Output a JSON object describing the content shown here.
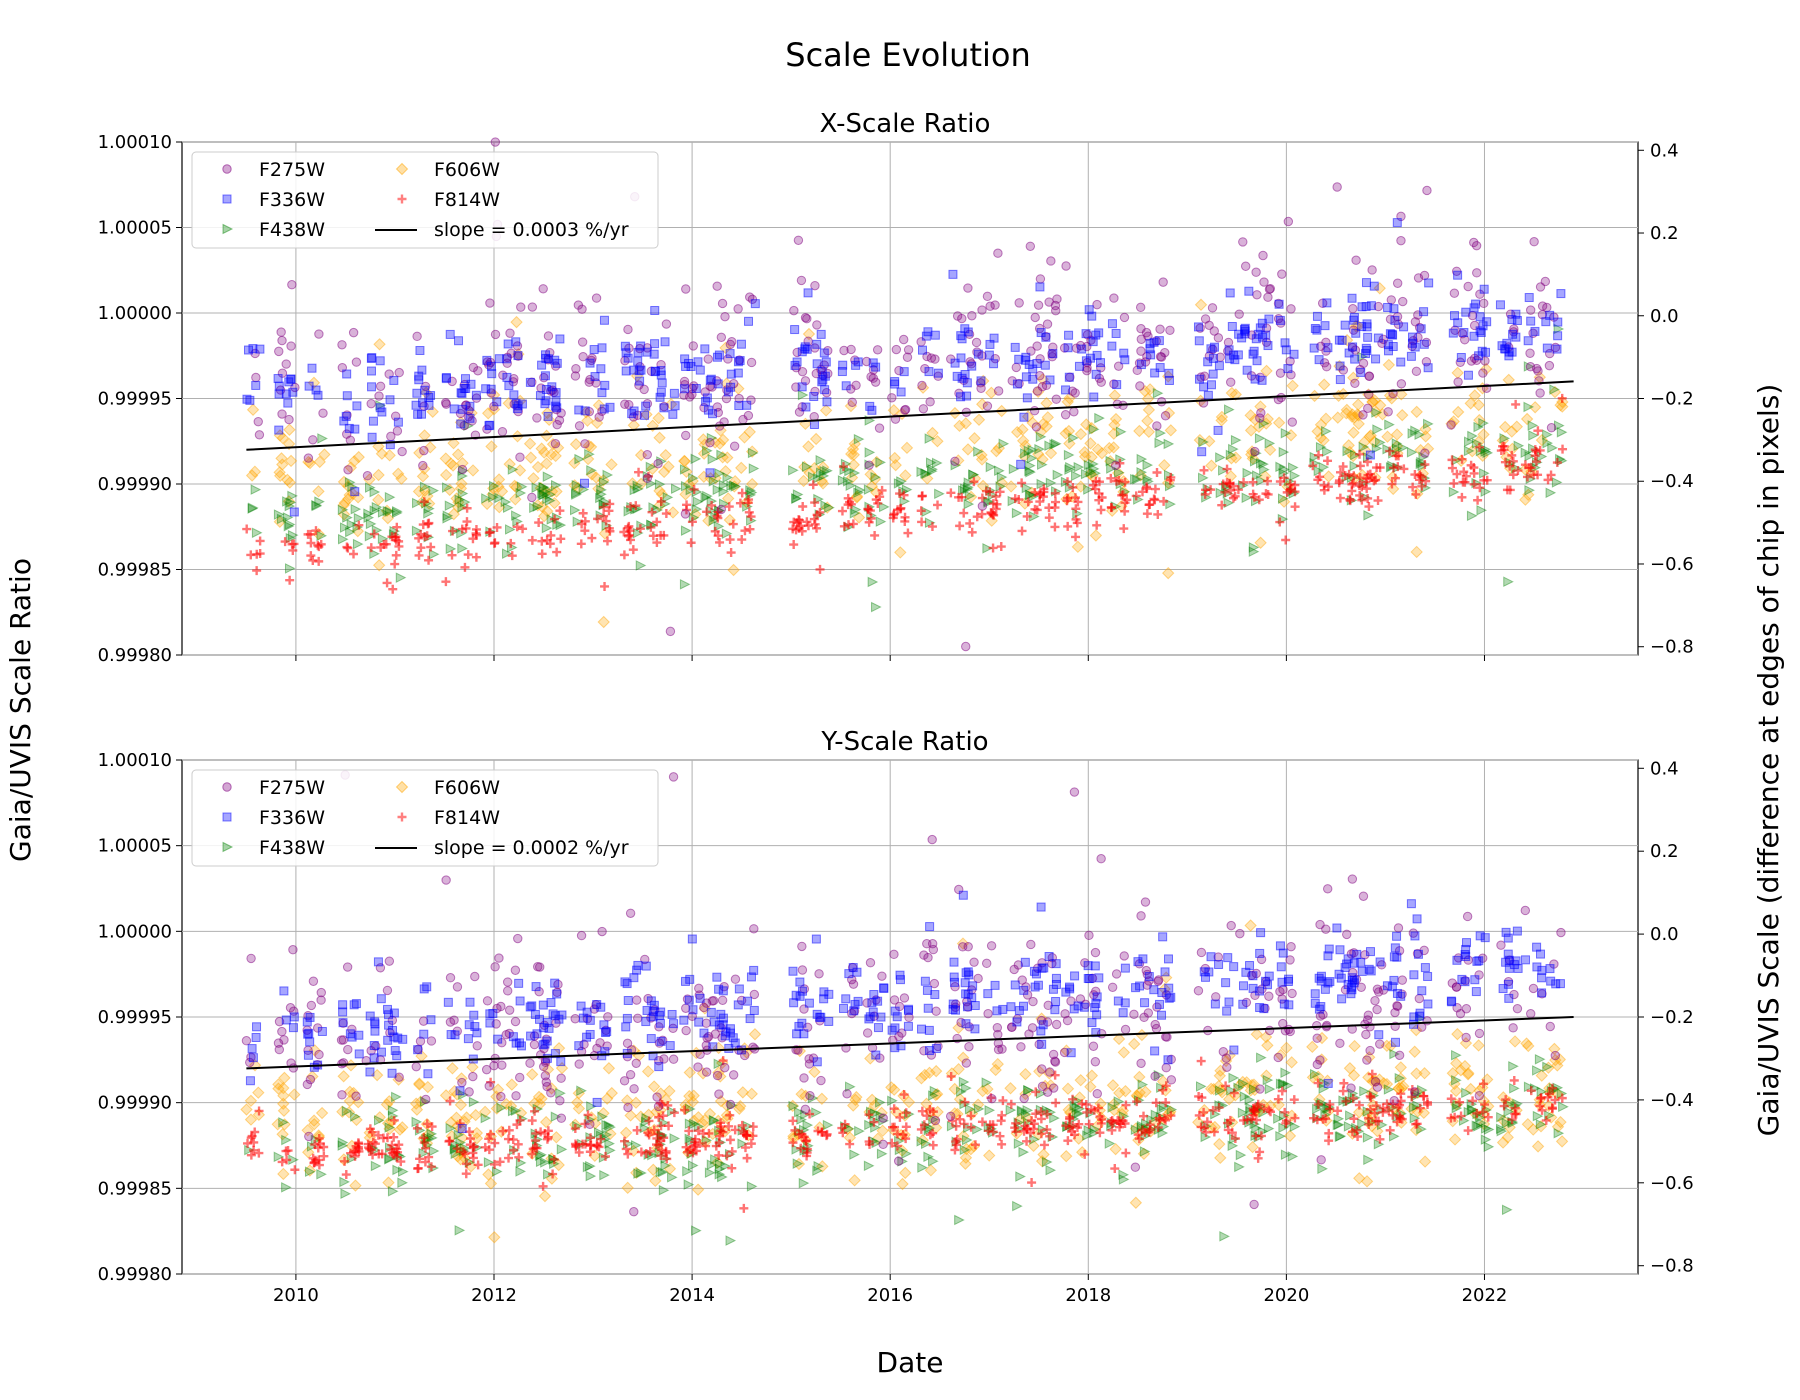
{
  "chart_data": {
    "type": "scatter",
    "title": "Scale Evolution",
    "xlabel": "Date",
    "ylabel_left": "Gaia/UVIS Scale Ratio",
    "ylabel_right": "Gaia/UVIS Scale (difference at edges of chip in pixels)",
    "xlim": [
      2008.85,
      2023.55
    ],
    "x_ticks": [
      2010,
      2012,
      2014,
      2016,
      2018,
      2020,
      2022
    ],
    "ylim": [
      0.9998,
      1.0001
    ],
    "y_ticks": [
      "1.00010",
      "1.00005",
      "1.00000",
      "0.99995",
      "0.99990",
      "0.99985",
      "0.99980"
    ],
    "y_tick_values": [
      1.0001,
      1.00005,
      1.0,
      0.99995,
      0.9999,
      0.99985,
      0.9998
    ],
    "y2lim": [
      -0.82,
      0.42
    ],
    "y2_ticks": [
      "0.4",
      "0.2",
      "0.0",
      "−0.2",
      "−0.4",
      "−0.6",
      "−0.8"
    ],
    "y2_tick_values": [
      0.4,
      0.2,
      0.0,
      -0.2,
      -0.4,
      -0.6,
      -0.8
    ],
    "grid": true,
    "legend_position": "top-left",
    "filters": [
      {
        "name": "F275W",
        "marker": "circle",
        "color": "#800080"
      },
      {
        "name": "F336W",
        "marker": "square",
        "color": "#0000ff"
      },
      {
        "name": "F438W",
        "marker": "triangle-right",
        "color": "#008000"
      },
      {
        "name": "F606W",
        "marker": "diamond",
        "color": "#ffa500"
      },
      {
        "name": "F814W",
        "marker": "plus",
        "color": "#ff0000"
      }
    ],
    "panels": [
      {
        "id": "x-scale",
        "title": "X-Scale Ratio",
        "slope_label": "slope = 0.0003 %/yr",
        "fit_line": {
          "x": [
            2009.5,
            2022.9
          ],
          "y": [
            0.99992,
            0.99996
          ]
        },
        "series": [
          {
            "name": "F275W",
            "mean_start": 0.99995,
            "mean_end": 0.99999,
            "spread": 2.5e-05
          },
          {
            "name": "F336W",
            "mean_start": 0.99995,
            "mean_end": 0.99999,
            "spread": 1.2e-05
          },
          {
            "name": "F438W",
            "mean_start": 0.99988,
            "mean_end": 0.99992,
            "spread": 1.2e-05
          },
          {
            "name": "F606W",
            "mean_start": 0.9999,
            "mean_end": 0.99994,
            "spread": 1.8e-05
          },
          {
            "name": "F814W",
            "mean_start": 0.99986,
            "mean_end": 0.99991,
            "spread": 7e-06
          }
        ]
      },
      {
        "id": "y-scale",
        "title": "Y-Scale Ratio",
        "slope_label": "slope = 0.0002 %/yr",
        "fit_line": {
          "x": [
            2009.5,
            2022.9
          ],
          "y": [
            0.99992,
            0.99995
          ]
        },
        "series": [
          {
            "name": "F275W",
            "mean_start": 0.99993,
            "mean_end": 0.99997,
            "spread": 2.5e-05
          },
          {
            "name": "F336W",
            "mean_start": 0.99994,
            "mean_end": 0.99998,
            "spread": 1.2e-05
          },
          {
            "name": "F438W",
            "mean_start": 0.99987,
            "mean_end": 0.9999,
            "spread": 1.2e-05
          },
          {
            "name": "F606W",
            "mean_start": 0.99989,
            "mean_end": 0.99991,
            "spread": 1.8e-05
          },
          {
            "name": "F814W",
            "mean_start": 0.99987,
            "mean_end": 0.9999,
            "spread": 7e-06
          }
        ]
      }
    ],
    "observation_epochs": [
      2009.55,
      2009.9,
      2010.2,
      2010.55,
      2010.8,
      2011.0,
      2011.3,
      2011.6,
      2011.75,
      2012.0,
      2012.2,
      2012.45,
      2012.6,
      2012.9,
      2013.1,
      2013.4,
      2013.6,
      2013.75,
      2014.0,
      2014.2,
      2014.35,
      2014.55,
      2015.1,
      2015.3,
      2015.6,
      2015.85,
      2016.1,
      2016.4,
      2016.7,
      2016.85,
      2017.05,
      2017.3,
      2017.45,
      2017.6,
      2017.85,
      2018.05,
      2018.3,
      2018.55,
      2018.75,
      2019.2,
      2019.4,
      2019.6,
      2019.75,
      2020.0,
      2020.35,
      2020.6,
      2020.75,
      2020.9,
      2021.1,
      2021.35,
      2021.75,
      2021.95,
      2022.25,
      2022.5,
      2022.7
    ]
  }
}
